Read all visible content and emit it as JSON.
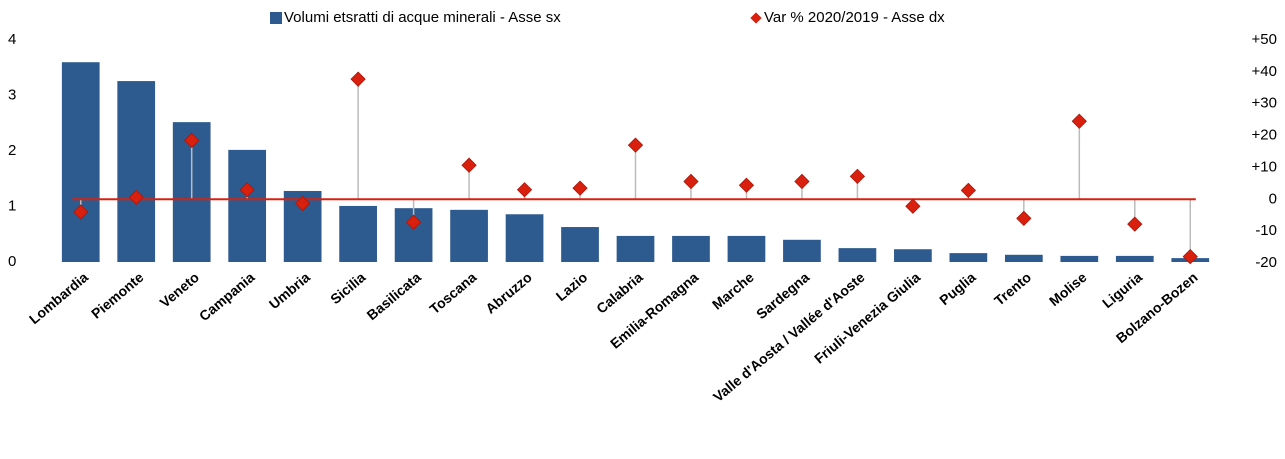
{
  "chart_data": {
    "type": "bar",
    "categories": [
      "Lombardia",
      "Piemonte",
      "Veneto",
      "Campania",
      "Umbria",
      "Sicilia",
      "Basilicata",
      "Toscana",
      "Abruzzo",
      "Lazio",
      "Calabria",
      "Emilia-Romagna",
      "Marche",
      "Sardegna",
      "Valle d'Aosta / Vallée d'Aoste",
      "Friuli-Venezia Giulia",
      "Puglia",
      "Trento",
      "Molise",
      "Liguria",
      "Bolzano-Bozen"
    ],
    "series": [
      {
        "name": "Volumi etsratti di acque minerali - Asse sx",
        "type": "bar",
        "color": "#2e5b8f",
        "values": [
          3.6,
          3.26,
          2.52,
          2.02,
          1.28,
          1.01,
          0.97,
          0.94,
          0.86,
          0.63,
          0.47,
          0.47,
          0.47,
          0.4,
          0.25,
          0.23,
          0.16,
          0.13,
          0.11,
          0.11,
          0.07
        ]
      },
      {
        "name": "Var % 2020/2019 - Asse dx",
        "type": "scatter",
        "axis": "y2",
        "color": "#d9200e",
        "values": [
          -4,
          0.6,
          18.5,
          3,
          -1.3,
          37.7,
          -7.2,
          10.7,
          3,
          3.5,
          17,
          5.6,
          4.4,
          5.6,
          7.2,
          -2.2,
          2.8,
          -6,
          24.5,
          -7.8,
          -18
        ]
      }
    ],
    "ylim": [
      0,
      4
    ],
    "yticks": [
      0,
      1,
      2,
      3,
      4
    ],
    "y2lim": [
      -20,
      50
    ],
    "y2ticks": [
      -20,
      -10,
      0,
      {
        "value": 10,
        "label": "+10"
      },
      {
        "value": 20,
        "label": "+20"
      },
      {
        "value": 30,
        "label": "+30"
      },
      {
        "value": 40,
        "label": "+40"
      },
      {
        "value": 50,
        "label": "+50"
      }
    ],
    "grid": false,
    "legend": "top"
  }
}
